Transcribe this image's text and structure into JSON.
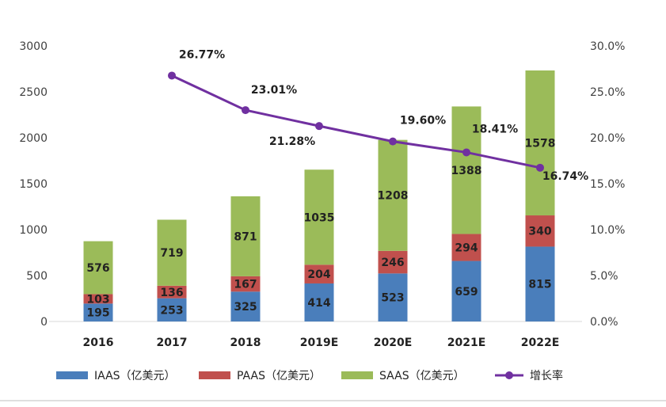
{
  "chart_data": {
    "type": "bar",
    "stacked": true,
    "categories": [
      "2016",
      "2017",
      "2018",
      "2019E",
      "2020E",
      "2021E",
      "2022E"
    ],
    "series": [
      {
        "name": "IAAS（亿美元）",
        "color": "#4A7EBB",
        "values": [
          195,
          253,
          325,
          414,
          523,
          659,
          815
        ]
      },
      {
        "name": "PAAS（亿美元）",
        "color": "#C0504D",
        "values": [
          103,
          136,
          167,
          204,
          246,
          294,
          340
        ]
      },
      {
        "name": "SAAS（亿美元）",
        "color": "#9BBB59",
        "values": [
          576,
          719,
          871,
          1035,
          1208,
          1388,
          1578
        ]
      }
    ],
    "line_series": {
      "name": "增长率",
      "color": "#7030A0",
      "axis": "right",
      "x": [
        "2017",
        "2018",
        "2019E",
        "2020E",
        "2021E",
        "2022E"
      ],
      "values": [
        26.77,
        23.01,
        21.28,
        19.6,
        18.41,
        16.74
      ],
      "labels": [
        "26.77%",
        "23.01%",
        "21.28%",
        "19.60%",
        "18.41%",
        "16.74%"
      ]
    },
    "y_left": {
      "lim": [
        0,
        3000
      ],
      "ticks": [
        "0",
        "500",
        "1000",
        "1500",
        "2000",
        "2500",
        "3000"
      ]
    },
    "y_right": {
      "lim": [
        0,
        30
      ],
      "ticks": [
        "0.0%",
        "5.0%",
        "10.0%",
        "15.0%",
        "20.0%",
        "25.0%",
        "30.0%"
      ]
    },
    "grid": false,
    "legend": "bottom"
  }
}
